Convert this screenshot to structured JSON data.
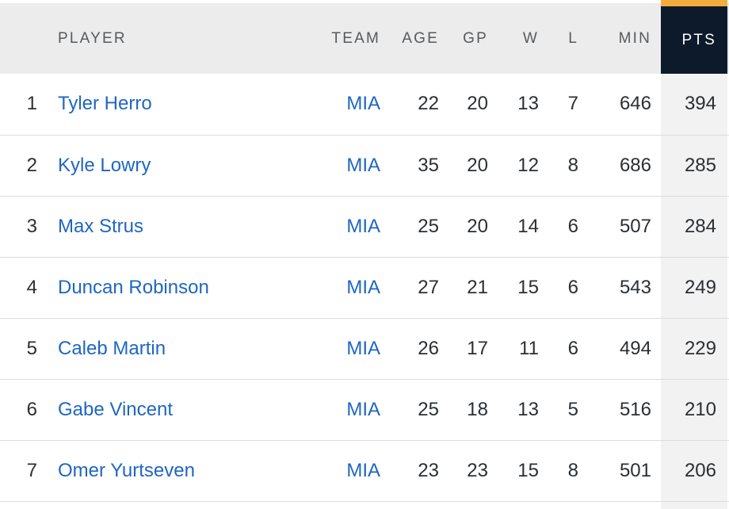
{
  "header": {
    "rank": "",
    "player": "PLAYER",
    "team": "TEAM",
    "age": "AGE",
    "gp": "GP",
    "w": "W",
    "l": "L",
    "min": "MIN",
    "pts": "PTS"
  },
  "sorted_column": "PTS",
  "colors": {
    "link": "#1f66c1",
    "header_bg": "#ececec",
    "sorted_header_bg": "#0c1a2c",
    "sorted_header_accent": "#f2ad3c",
    "sorted_cell_bg": "#f2f2f2"
  },
  "rows": [
    {
      "rank": "1",
      "player": "Tyler Herro",
      "team": "MIA",
      "age": "22",
      "gp": "20",
      "w": "13",
      "l": "7",
      "min": "646",
      "pts": "394"
    },
    {
      "rank": "2",
      "player": "Kyle Lowry",
      "team": "MIA",
      "age": "35",
      "gp": "20",
      "w": "12",
      "l": "8",
      "min": "686",
      "pts": "285"
    },
    {
      "rank": "3",
      "player": "Max Strus",
      "team": "MIA",
      "age": "25",
      "gp": "20",
      "w": "14",
      "l": "6",
      "min": "507",
      "pts": "284"
    },
    {
      "rank": "4",
      "player": "Duncan Robinson",
      "team": "MIA",
      "age": "27",
      "gp": "21",
      "w": "15",
      "l": "6",
      "min": "543",
      "pts": "249"
    },
    {
      "rank": "5",
      "player": "Caleb Martin",
      "team": "MIA",
      "age": "26",
      "gp": "17",
      "w": "11",
      "l": "6",
      "min": "494",
      "pts": "229"
    },
    {
      "rank": "6",
      "player": "Gabe Vincent",
      "team": "MIA",
      "age": "25",
      "gp": "18",
      "w": "13",
      "l": "5",
      "min": "516",
      "pts": "210"
    },
    {
      "rank": "7",
      "player": "Omer Yurtseven",
      "team": "MIA",
      "age": "23",
      "gp": "23",
      "w": "15",
      "l": "8",
      "min": "501",
      "pts": "206"
    }
  ]
}
